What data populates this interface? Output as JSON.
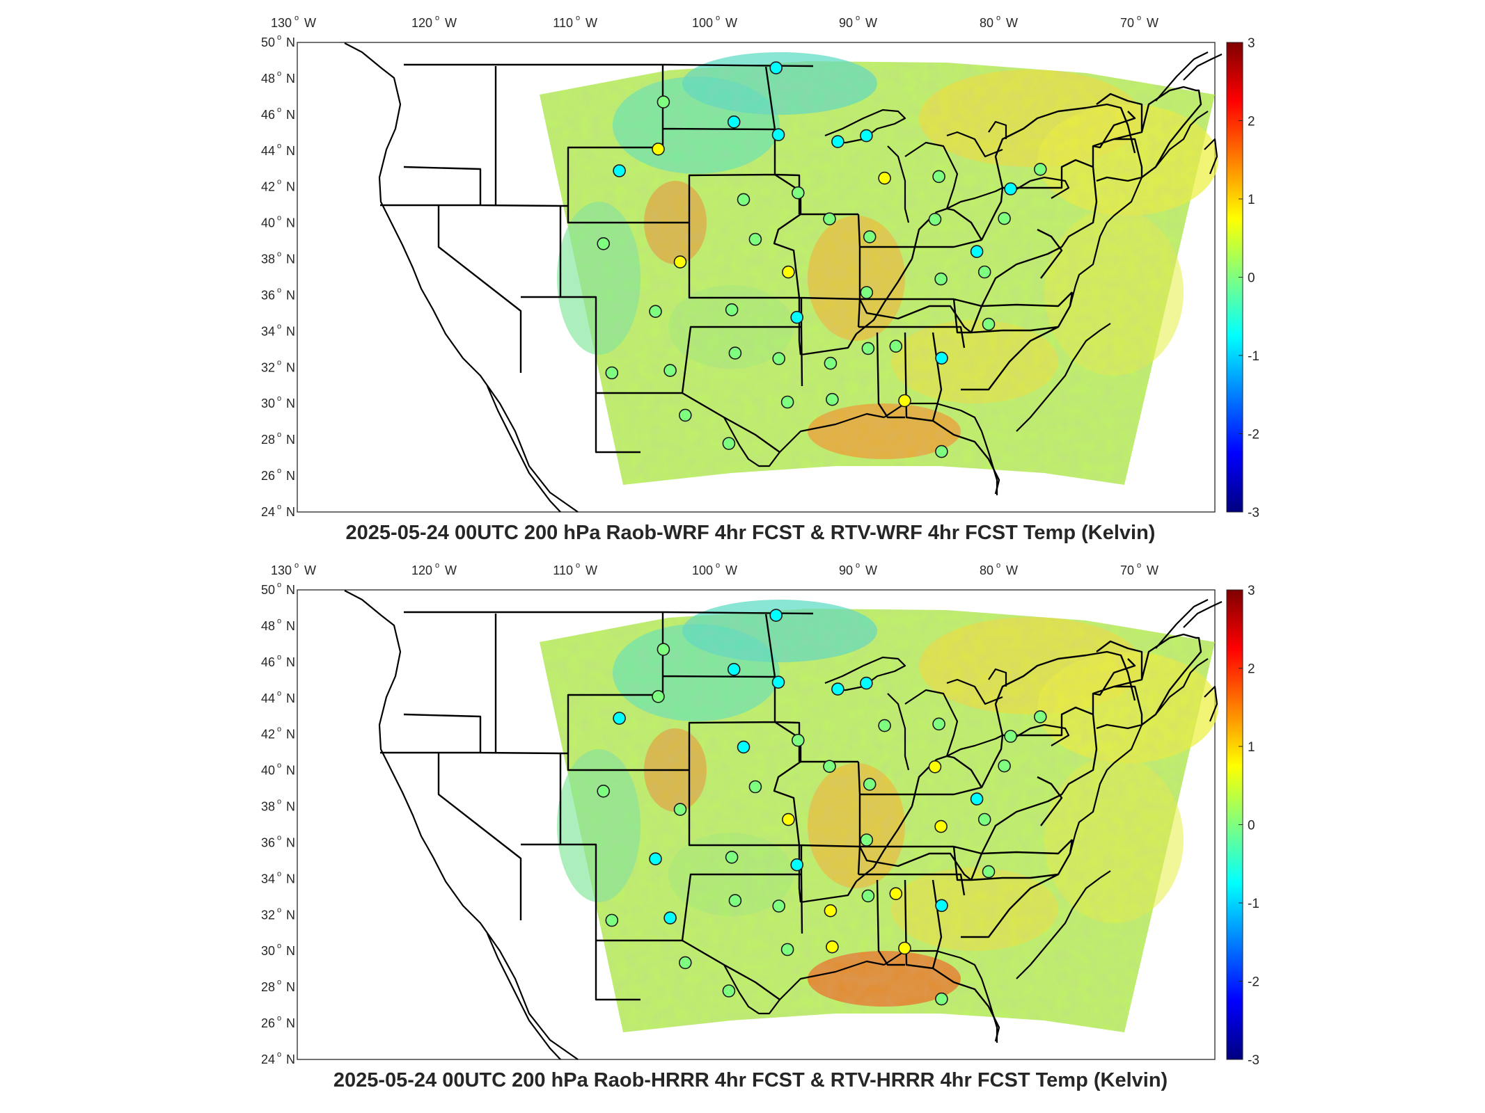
{
  "maps": [
    {
      "id": "top",
      "title": "2025-05-24 00UTC 200 hPa Raob-WRF 4hr FCST & RTV-WRF 4hr FCST Temp (Kelvin)"
    },
    {
      "id": "bottom",
      "title": "2025-05-24 00UTC 200 hPa Raob-HRRR 4hr FCST & RTV-HRRR 4hr FCST Temp (Kelvin)"
    }
  ],
  "axes": {
    "lon_ticks": [
      {
        "value": -130,
        "label": "130"
      },
      {
        "value": -120,
        "label": "120"
      },
      {
        "value": -110,
        "label": "110"
      },
      {
        "value": -100,
        "label": "100"
      },
      {
        "value": -90,
        "label": "90"
      },
      {
        "value": -80,
        "label": "80"
      },
      {
        "value": -70,
        "label": "70"
      }
    ],
    "lon_suffix": "W",
    "lat_ticks": [
      {
        "value": 50,
        "label": "50"
      },
      {
        "value": 48,
        "label": "48"
      },
      {
        "value": 46,
        "label": "46"
      },
      {
        "value": 44,
        "label": "44"
      },
      {
        "value": 42,
        "label": "42"
      },
      {
        "value": 40,
        "label": "40"
      },
      {
        "value": 38,
        "label": "38"
      },
      {
        "value": 36,
        "label": "36"
      },
      {
        "value": 34,
        "label": "34"
      },
      {
        "value": 32,
        "label": "32"
      },
      {
        "value": 30,
        "label": "30"
      },
      {
        "value": 28,
        "label": "28"
      },
      {
        "value": 26,
        "label": "26"
      },
      {
        "value": 24,
        "label": "24"
      }
    ],
    "lat_suffix": "N",
    "degree_symbol": "o"
  },
  "colorbar": {
    "min": -3,
    "max": 3,
    "ticks": [
      "3",
      "2",
      "1",
      "0",
      "-1",
      "-2",
      "-3"
    ],
    "colors": [
      "#00007f",
      "#0000ff",
      "#007fff",
      "#00ffff",
      "#7fff7f",
      "#ffff00",
      "#ff7f00",
      "#ff0000",
      "#7f0000"
    ]
  },
  "stations": [
    {
      "lon": -93.6,
      "lat": 48.6,
      "top": -1.1,
      "bottom": -0.6
    },
    {
      "lon": -104.0,
      "lat": 46.8,
      "top": -0.2,
      "bottom": -0.1
    },
    {
      "lon": -97.5,
      "lat": 45.6,
      "top": -0.5,
      "bottom": -0.6
    },
    {
      "lon": -93.5,
      "lat": 44.9,
      "top": -0.7,
      "bottom": -0.9
    },
    {
      "lon": -88.2,
      "lat": 44.6,
      "top": -0.9,
      "bottom": -0.9
    },
    {
      "lon": -85.6,
      "lat": 45.0,
      "top": -0.4,
      "bottom": -0.7
    },
    {
      "lon": -107.5,
      "lat": 43.1,
      "top": -1.0,
      "bottom": -0.4
    },
    {
      "lon": -104.2,
      "lat": 44.2,
      "top": 0.4,
      "bottom": 0.0
    },
    {
      "lon": -84.3,
      "lat": 42.7,
      "top": 0.5,
      "bottom": 0.3
    },
    {
      "lon": -79.5,
      "lat": 43.0,
      "top": 0.3,
      "bottom": 0.2
    },
    {
      "lon": -73.3,
      "lat": 42.7,
      "top": -0.7,
      "bottom": 0.3
    },
    {
      "lon": -70.3,
      "lat": 44.0,
      "top": 0.3,
      "bottom": 0.3
    },
    {
      "lon": -96.6,
      "lat": 41.3,
      "top": -0.2,
      "bottom": -0.4
    },
    {
      "lon": -91.9,
      "lat": 41.7,
      "top": -0.1,
      "bottom": 0.1
    },
    {
      "lon": -89.3,
      "lat": 40.3,
      "top": 0.1,
      "bottom": 0.2
    },
    {
      "lon": -86.0,
      "lat": 39.4,
      "top": 0.2,
      "bottom": 0.1
    },
    {
      "lon": -80.3,
      "lat": 40.6,
      "top": 0.2,
      "bottom": 0.4
    },
    {
      "lon": -74.3,
      "lat": 41.0,
      "top": 0.0,
      "bottom": 0.0
    },
    {
      "lon": -77.1,
      "lat": 39.0,
      "top": -0.6,
      "bottom": -0.6
    },
    {
      "lon": -76.7,
      "lat": 37.9,
      "top": -0.3,
      "bottom": -0.3
    },
    {
      "lon": -80.4,
      "lat": 37.3,
      "top": 0.3,
      "bottom": 0.4
    },
    {
      "lon": -108.3,
      "lat": 39.1,
      "top": 0.3,
      "bottom": 0.1
    },
    {
      "lon": -101.8,
      "lat": 37.9,
      "top": 0.4,
      "bottom": 0.2
    },
    {
      "lon": -95.6,
      "lat": 39.1,
      "top": 0.3,
      "bottom": 0.1
    },
    {
      "lon": -92.9,
      "lat": 37.3,
      "top": 0.4,
      "bottom": 0.5
    },
    {
      "lon": -86.6,
      "lat": 36.3,
      "top": 0.1,
      "bottom": 0.3
    },
    {
      "lon": -77.0,
      "lat": 35.0,
      "top": 0.2,
      "bottom": 0.1
    },
    {
      "lon": -103.6,
      "lat": 35.2,
      "top": 0.2,
      "bottom": -0.6
    },
    {
      "lon": -97.5,
      "lat": 35.2,
      "top": 0.0,
      "bottom": 0.1
    },
    {
      "lon": -92.3,
      "lat": 34.8,
      "top": -0.4,
      "bottom": -0.8
    },
    {
      "lon": -89.8,
      "lat": 32.3,
      "top": 0.2,
      "bottom": 0.4
    },
    {
      "lon": -86.8,
      "lat": 33.2,
      "top": 0.3,
      "bottom": 0.2
    },
    {
      "lon": -84.6,
      "lat": 33.4,
      "top": 0.3,
      "bottom": 0.4
    },
    {
      "lon": -81.1,
      "lat": 32.9,
      "top": -0.4,
      "bottom": -0.5
    },
    {
      "lon": -97.2,
      "lat": 32.8,
      "top": 0.2,
      "bottom": 0.2
    },
    {
      "lon": -93.8,
      "lat": 32.5,
      "top": 0.3,
      "bottom": 0.3
    },
    {
      "lon": -102.2,
      "lat": 31.9,
      "top": 0.3,
      "bottom": -0.9
    },
    {
      "lon": -106.7,
      "lat": 31.9,
      "top": 0.1,
      "bottom": 0.0
    },
    {
      "lon": -93.2,
      "lat": 30.1,
      "top": 0.1,
      "bottom": 0.2
    },
    {
      "lon": -89.8,
      "lat": 30.3,
      "top": 0.3,
      "bottom": 0.4
    },
    {
      "lon": -84.3,
      "lat": 30.4,
      "top": 0.4,
      "bottom": 0.6
    },
    {
      "lon": -100.9,
      "lat": 29.4,
      "top": 0.3,
      "bottom": 0.3
    },
    {
      "lon": -97.6,
      "lat": 27.8,
      "top": 0.1,
      "bottom": 0.3
    },
    {
      "lon": -81.9,
      "lat": 27.7,
      "top": 0.2,
      "bottom": 0.2
    }
  ]
}
